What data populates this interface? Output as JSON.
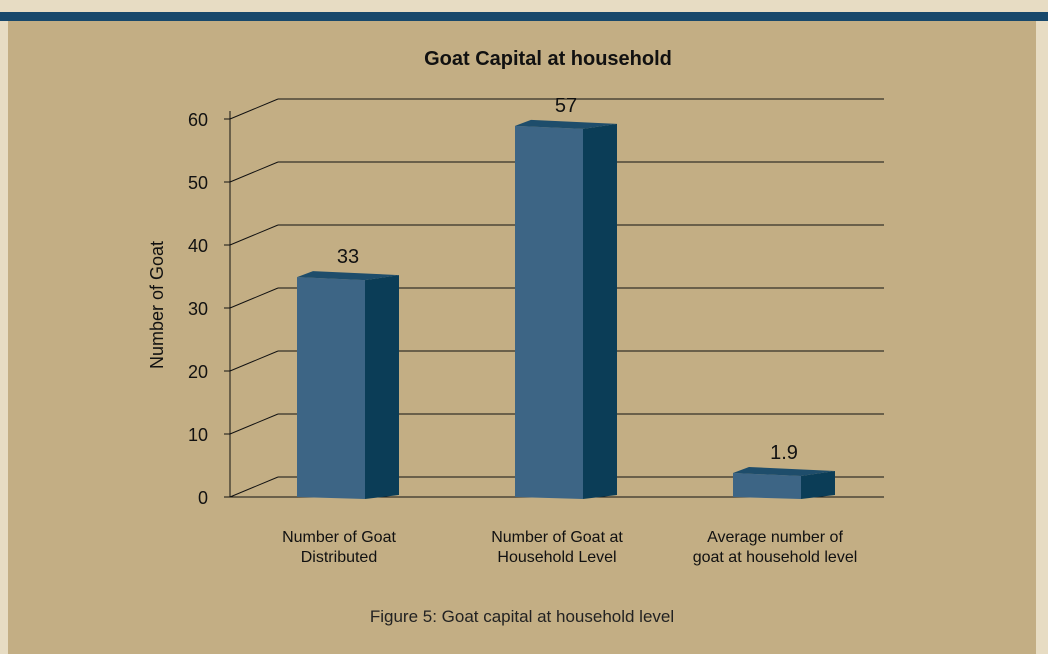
{
  "chart_data": {
    "type": "bar",
    "title": "Goat Capital at household",
    "ylabel": "Number of Goat",
    "xlabel": "",
    "ylim": [
      0,
      60
    ],
    "yticks": [
      0,
      10,
      20,
      30,
      40,
      50,
      60
    ],
    "grid": true,
    "three_d": true,
    "categories": [
      [
        "Number of Goat",
        "Distributed"
      ],
      [
        "Number of Goat at",
        "Household Level"
      ],
      [
        "Average number of",
        "goat at household level"
      ]
    ],
    "values": [
      33,
      57,
      1.9
    ],
    "data_labels": [
      "33",
      "57",
      "1.9"
    ]
  },
  "caption": "Figure 5: Goat capital at household level",
  "colors": {
    "bar_front": "#3d6585",
    "bar_side": "#0b3d57",
    "bar_top": "#1e4d6b",
    "background": "#c3ae84",
    "frame": "#e7dcc3",
    "top_bar": "#18486b"
  }
}
